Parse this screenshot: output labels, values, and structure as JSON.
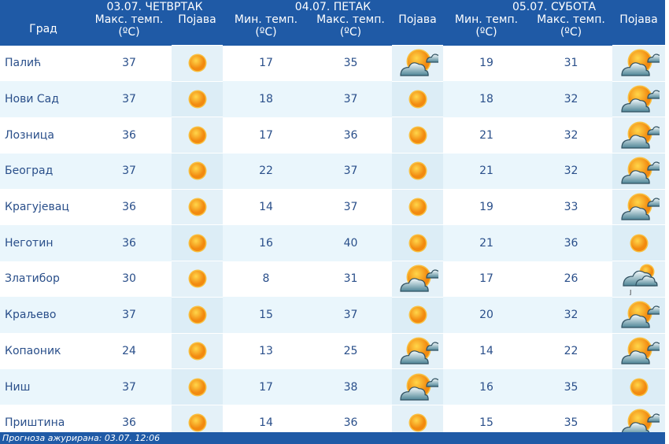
{
  "header": {
    "days": [
      "03.07. ЧЕТВРТАК",
      "04.07. ПЕТАК",
      "05.07. СУБОТА"
    ],
    "columns": {
      "city": "Град",
      "max": "Макс. темп.",
      "min": "Мин. темп.",
      "unit": "(ºC)",
      "phenomenon": "Појава"
    }
  },
  "rows": [
    {
      "city": "Палић",
      "d1max": "37",
      "d1icon": "sun",
      "d2min": "17",
      "d2max": "35",
      "d2icon": "partly-cloudy",
      "d3min": "19",
      "d3max": "31",
      "d3icon": "partly-cloudy"
    },
    {
      "city": "Нови Сад",
      "d1max": "37",
      "d1icon": "sun",
      "d2min": "18",
      "d2max": "37",
      "d2icon": "sun",
      "d3min": "18",
      "d3max": "32",
      "d3icon": "partly-cloudy"
    },
    {
      "city": "Лозница",
      "d1max": "36",
      "d1icon": "sun",
      "d2min": "17",
      "d2max": "36",
      "d2icon": "sun",
      "d3min": "21",
      "d3max": "32",
      "d3icon": "partly-cloudy"
    },
    {
      "city": "Београд",
      "d1max": "37",
      "d1icon": "sun",
      "d2min": "22",
      "d2max": "37",
      "d2icon": "sun",
      "d3min": "21",
      "d3max": "32",
      "d3icon": "partly-cloudy"
    },
    {
      "city": "Крагујевац",
      "d1max": "36",
      "d1icon": "sun",
      "d2min": "14",
      "d2max": "37",
      "d2icon": "sun",
      "d3min": "19",
      "d3max": "33",
      "d3icon": "partly-cloudy"
    },
    {
      "city": "Неготин",
      "d1max": "36",
      "d1icon": "sun",
      "d2min": "16",
      "d2max": "40",
      "d2icon": "sun",
      "d3min": "21",
      "d3max": "36",
      "d3icon": "sun"
    },
    {
      "city": "Златибор",
      "d1max": "30",
      "d1icon": "sun",
      "d2min": "8",
      "d2max": "31",
      "d2icon": "partly-cloudy",
      "d3min": "17",
      "d3max": "26",
      "d3icon": "cloudy-shower"
    },
    {
      "city": "Краљево",
      "d1max": "37",
      "d1icon": "sun",
      "d2min": "15",
      "d2max": "37",
      "d2icon": "sun",
      "d3min": "20",
      "d3max": "32",
      "d3icon": "partly-cloudy"
    },
    {
      "city": "Копаоник",
      "d1max": "24",
      "d1icon": "sun",
      "d2min": "13",
      "d2max": "25",
      "d2icon": "partly-cloudy",
      "d3min": "14",
      "d3max": "22",
      "d3icon": "partly-cloudy"
    },
    {
      "city": "Ниш",
      "d1max": "37",
      "d1icon": "sun",
      "d2min": "17",
      "d2max": "38",
      "d2icon": "partly-cloudy",
      "d3min": "16",
      "d3max": "35",
      "d3icon": "sun"
    },
    {
      "city": "Приштина",
      "d1max": "36",
      "d1icon": "sun",
      "d2min": "14",
      "d2max": "36",
      "d2icon": "sun",
      "d3min": "15",
      "d3max": "35",
      "d3icon": "partly-cloudy"
    }
  ],
  "footer": {
    "text": "Прогноза ажурирана:  03.07. 12:06"
  },
  "colors": {
    "header": "#1f5aa6",
    "text": "#2a4f8a",
    "alt_row": "#eaf6fc",
    "sun": "#f7a21b"
  }
}
